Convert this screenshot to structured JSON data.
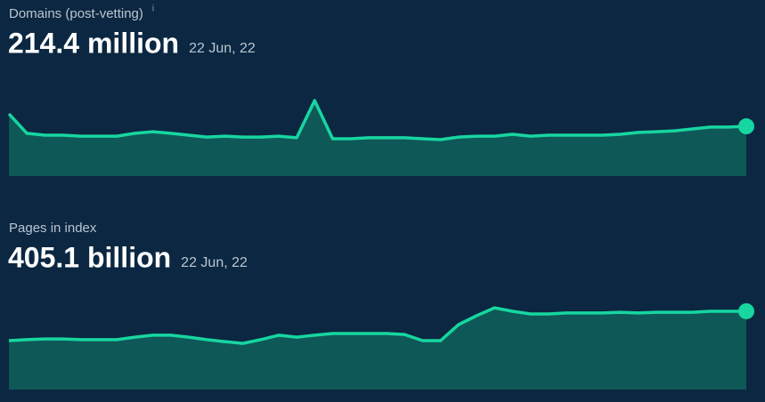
{
  "chart_data": [
    {
      "type": "area",
      "title": "Domains (post-vetting)",
      "info_icon": "i",
      "headline": "214.4 million",
      "date": "22 Jun, 22",
      "color": "#17d6a0",
      "fill_color": "#0e5858",
      "ylim": [
        0,
        350
      ],
      "values": [
        268,
        184,
        176,
        176,
        172,
        172,
        172,
        184,
        191,
        184,
        176,
        168,
        172,
        168,
        168,
        172,
        165,
        325,
        161,
        161,
        165,
        165,
        165,
        161,
        157,
        168,
        172,
        172,
        180,
        172,
        176,
        176,
        176,
        176,
        180,
        188,
        191,
        195,
        203,
        211,
        211,
        214.4
      ]
    },
    {
      "type": "area",
      "title": "Pages in index",
      "headline": "405.1 billion",
      "date": "22 Jun, 22",
      "color": "#17d6a0",
      "fill_color": "#0e5858",
      "ylim": [
        0,
        450
      ],
      "values": [
        253,
        258,
        262,
        262,
        258,
        258,
        258,
        271,
        281,
        281,
        271,
        258,
        248,
        239,
        258,
        281,
        271,
        281,
        290,
        290,
        290,
        290,
        285,
        253,
        253,
        336,
        382,
        423,
        405,
        391,
        391,
        396,
        396,
        396,
        400,
        396,
        400,
        400,
        400,
        405,
        405,
        405.1
      ]
    }
  ]
}
